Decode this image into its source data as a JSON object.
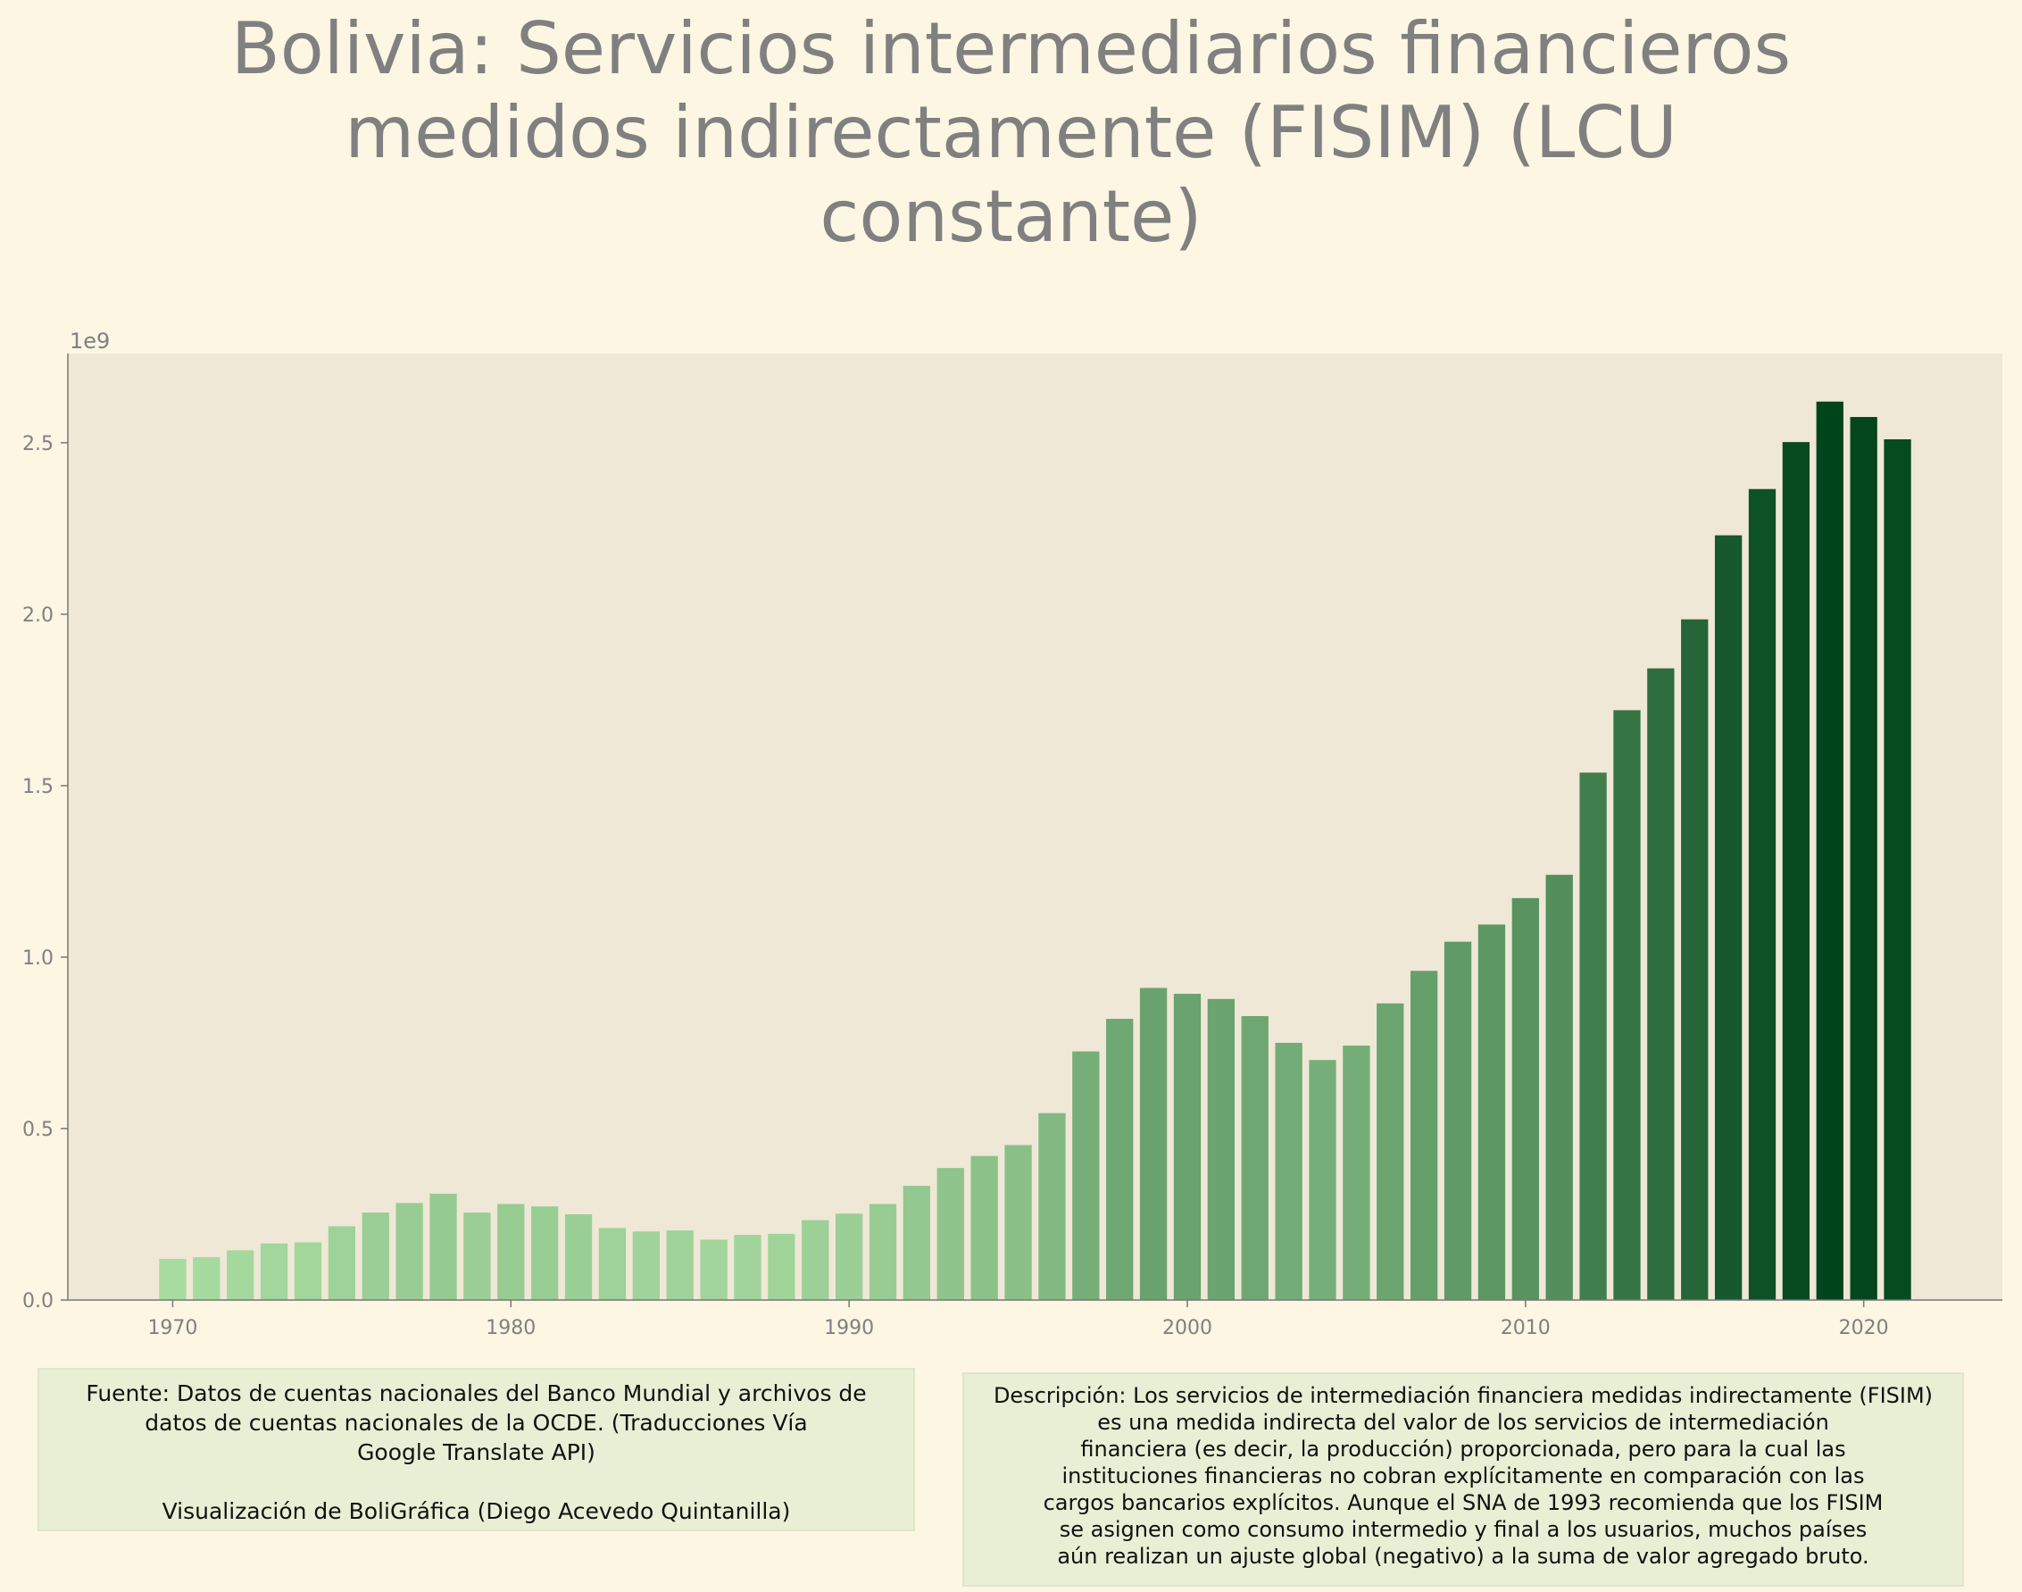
{
  "title_lines": [
    "Bolivia:  Servicios intermediarios financieros",
    "medidos indirectamente (FISIM) (LCU",
    "constante)"
  ],
  "chart_data": {
    "type": "bar",
    "offset_label": "1e9",
    "x": [
      1970,
      1971,
      1972,
      1973,
      1974,
      1975,
      1976,
      1977,
      1978,
      1979,
      1980,
      1981,
      1982,
      1983,
      1984,
      1985,
      1986,
      1987,
      1988,
      1989,
      1990,
      1991,
      1992,
      1993,
      1994,
      1995,
      1996,
      1997,
      1998,
      1999,
      2000,
      2001,
      2002,
      2003,
      2004,
      2005,
      2006,
      2007,
      2008,
      2009,
      2010,
      2011,
      2012,
      2013,
      2014,
      2015,
      2016,
      2017,
      2018,
      2019,
      2020,
      2021
    ],
    "values": [
      0.12,
      0.125,
      0.145,
      0.165,
      0.168,
      0.215,
      0.255,
      0.283,
      0.31,
      0.255,
      0.28,
      0.273,
      0.25,
      0.21,
      0.2,
      0.203,
      0.176,
      0.19,
      0.193,
      0.233,
      0.252,
      0.28,
      0.333,
      0.385,
      0.42,
      0.452,
      0.545,
      0.725,
      0.82,
      0.91,
      0.893,
      0.878,
      0.828,
      0.75,
      0.7,
      0.742,
      0.865,
      0.96,
      1.045,
      1.095,
      1.172,
      1.24,
      1.538,
      1.72,
      1.842,
      1.985,
      2.23,
      2.365,
      2.502,
      2.62,
      2.575,
      2.51
    ],
    "x_ticks": [
      "1970",
      "1980",
      "1990",
      "2000",
      "2010",
      "2020"
    ],
    "y_ticks": [
      "0.0",
      "0.5",
      "1.0",
      "1.5",
      "2.0",
      "2.5"
    ],
    "xlim": [
      1966.9,
      2024.1
    ],
    "ylim": [
      0,
      2.76
    ],
    "grid": false,
    "bar_color_low": "#a8dba0",
    "bar_color_high": "#00441b",
    "plot_bg": "#efe8d6"
  },
  "source_lines": [
    "Fuente: Datos de cuentas nacionales del Banco Mundial y archivos de",
    "datos de cuentas nacionales de la OCDE. (Traducciones Vía",
    "Google Translate API)",
    "",
    "Visualización de BoliGráfica (Diego Acevedo Quintanilla)"
  ],
  "description_lines": [
    "Descripción: Los servicios de intermediación financiera medidas indirectamente (FISIM)",
    "es una medida indirecta del valor de los servicios de intermediación",
    "financiera (es decir, la producción) proporcionada, pero para la cual las",
    "instituciones financieras no cobran explícitamente en comparación con las",
    "cargos bancarios explícitos. Aunque el SNA de 1993 recomienda que los FISIM",
    "se asignen como consumo intermedio y final a los usuarios, muchos países",
    "aún realizan un ajuste global (negativo) a la suma de valor agregado bruto."
  ]
}
